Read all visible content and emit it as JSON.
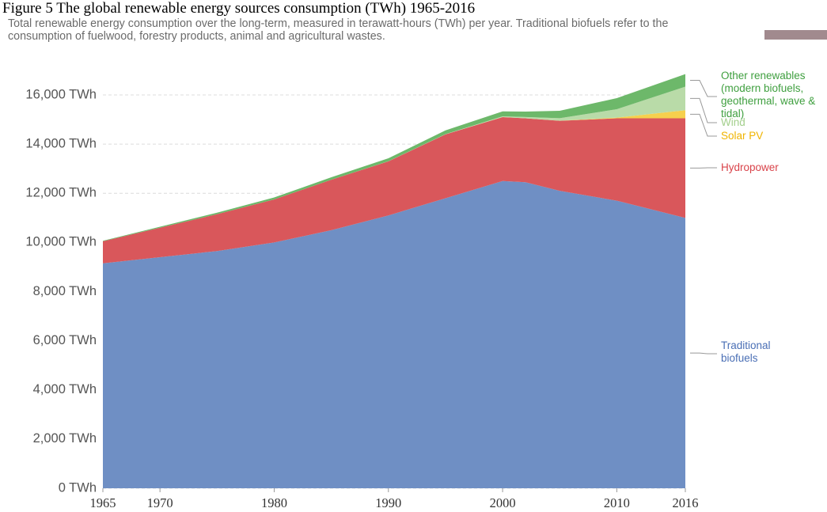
{
  "chart_data": {
    "type": "stacked_area",
    "title": "Figure 5 The global renewable energy sources consumption (TWh) 1965-2016",
    "subtitle": "Total renewable energy consumption over the long-term, measured in terawatt-hours (TWh) per year. Traditional biofuels refer to the consumption of fuelwood, forestry products, animal and agricultural wastes.",
    "x": [
      1965,
      1970,
      1975,
      1980,
      1985,
      1990,
      1995,
      2000,
      2002,
      2005,
      2010,
      2016
    ],
    "series": [
      {
        "name": "Traditional biofuels",
        "color": "#6f8fc4",
        "label_color": "#4a6fb5",
        "values": [
          9150,
          9400,
          9650,
          10000,
          10500,
          11100,
          11800,
          12500,
          12450,
          12100,
          11700,
          11000
        ]
      },
      {
        "name": "Hydropower",
        "color": "#d9575b",
        "label_color": "#d9434a",
        "values": [
          900,
          1200,
          1500,
          1750,
          2050,
          2200,
          2600,
          2600,
          2600,
          2850,
          3350,
          4050
        ]
      },
      {
        "name": "Solar PV",
        "color": "#f6d04d",
        "label_color": "#f0b400",
        "values": [
          0,
          0,
          0,
          0,
          0,
          0,
          0,
          1,
          2,
          5,
          30,
          330
        ]
      },
      {
        "name": "Wind",
        "color": "#b9dba8",
        "label_color": "#a3cf8c",
        "values": [
          0,
          0,
          0,
          0,
          1,
          4,
          8,
          30,
          50,
          100,
          340,
          960
        ]
      },
      {
        "name": "Other renewables (modern biofuels, geothermal, wave & tidal)",
        "color": "#6db86a",
        "label_color": "#3f9f3f",
        "values": [
          20,
          40,
          60,
          80,
          100,
          120,
          150,
          200,
          220,
          300,
          450,
          510
        ]
      }
    ],
    "xlim": [
      1965,
      2016
    ],
    "xticks": [
      1965,
      1970,
      1980,
      1990,
      2000,
      2010,
      2016
    ],
    "ylim": [
      0,
      16000
    ],
    "yticks": [
      {
        "value": 0,
        "label": "0 TWh"
      },
      {
        "value": 2000,
        "label": "2,000 TWh"
      },
      {
        "value": 4000,
        "label": "4,000 TWh"
      },
      {
        "value": 6000,
        "label": "6,000 TWh"
      },
      {
        "value": 8000,
        "label": "8,000 TWh"
      },
      {
        "value": 10000,
        "label": "10,000 TWh"
      },
      {
        "value": 12000,
        "label": "12,000 TWh"
      },
      {
        "value": 14000,
        "label": "14,000 TWh"
      },
      {
        "value": 16000,
        "label": "16,000 TWh"
      }
    ],
    "grid": true
  }
}
